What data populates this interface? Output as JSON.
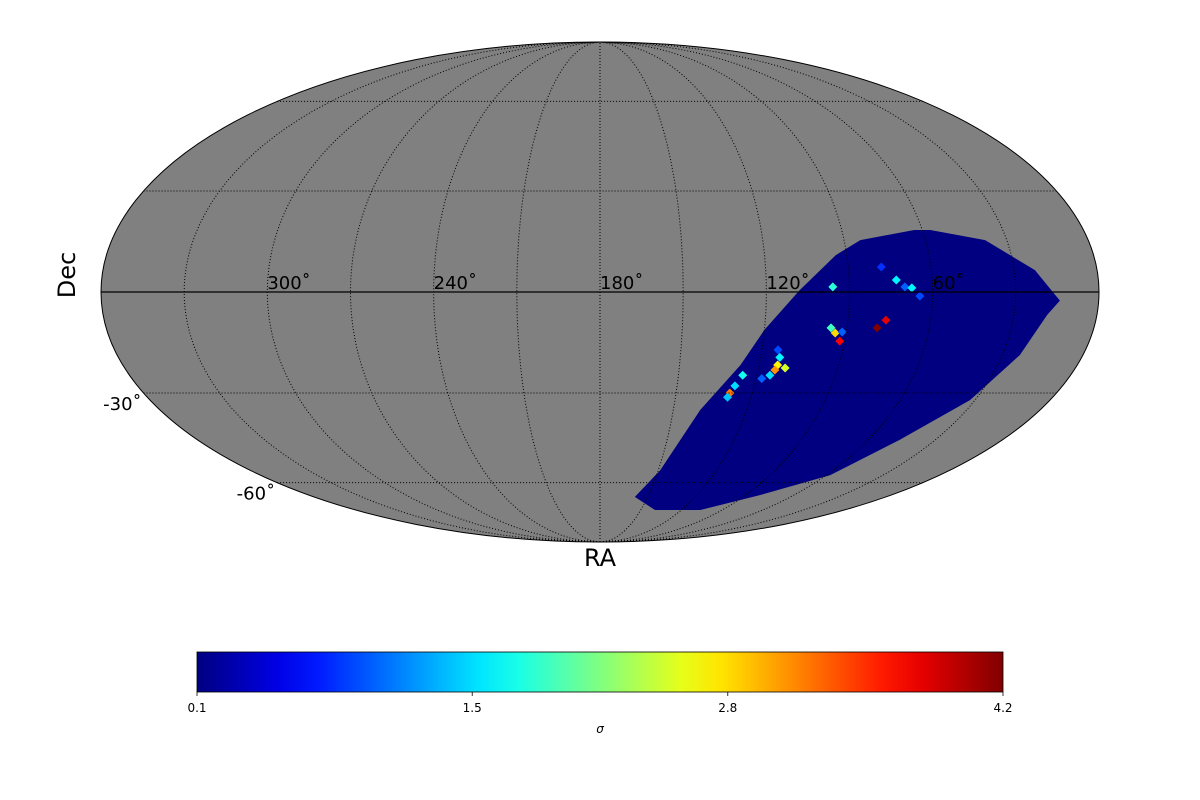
{
  "chart_data": {
    "type": "mollweide",
    "xlabel": "RA",
    "ylabel": "Dec",
    "xticks": [
      {
        "value": 300,
        "label": "300˚"
      },
      {
        "value": 240,
        "label": "240˚"
      },
      {
        "value": 180,
        "label": "180˚"
      },
      {
        "value": 120,
        "label": "120˚"
      },
      {
        "value": 60,
        "label": "60˚"
      }
    ],
    "yticks": [
      {
        "value": -30,
        "label": "-30˚"
      },
      {
        "value": -60,
        "label": "-60˚"
      }
    ],
    "graticule_step": 30,
    "background_color": "#808080",
    "cmap": "jet",
    "clim": [
      0.1,
      4.2
    ],
    "cticks": [
      0.1,
      1.5,
      2.8,
      4.2
    ],
    "clabel": "σ",
    "footprint": {
      "value": 0.1,
      "ra": [
        63,
        84,
        94,
        108,
        120,
        127,
        139,
        149,
        158,
        139.5,
        106,
        81,
        58,
        46,
        32,
        23.5,
        18,
        14,
        22.5,
        38,
        57
      ],
      "dec": [
        18.2,
        15.2,
        10.8,
        0.5,
        -11.1,
        -21.5,
        -35.3,
        -55.4,
        -65.6,
        -71.1,
        -71.1,
        -64.8,
        -57.2,
        -45.0,
        -32.2,
        -18.5,
        -6.7,
        -2.5,
        6.4,
        15.2,
        18.2
      ]
    },
    "pixels": {
      "ra": [
        96,
        78,
        73,
        70,
        67.5,
        64.6,
        95.8,
        94,
        91.5,
        91.8,
        76.2,
        79,
        114,
        112.8,
        113,
        113.6,
        115,
        117.8,
        125.4,
        127.5,
        128.8,
        129.3,
        109.9
      ],
      "dec": [
        1.5,
        7.3,
        3.5,
        1.5,
        1.2,
        -1.2,
        -10.5,
        -12,
        -11.7,
        -14.4,
        -8.2,
        -10.5,
        -17.0,
        -19.2,
        -21.5,
        -23.0,
        -24.6,
        -25.6,
        -24.6,
        -27.8,
        -30.0,
        -31.3,
        -22.4
      ],
      "values": [
        1.8,
        0.8,
        1.6,
        1.0,
        1.6,
        0.9,
        1.9,
        2.8,
        1.0,
        3.7,
        3.8,
        4.2,
        0.9,
        1.6,
        2.7,
        3.1,
        1.5,
        1.0,
        1.7,
        1.5,
        3.2,
        1.4,
        2.5
      ]
    }
  }
}
